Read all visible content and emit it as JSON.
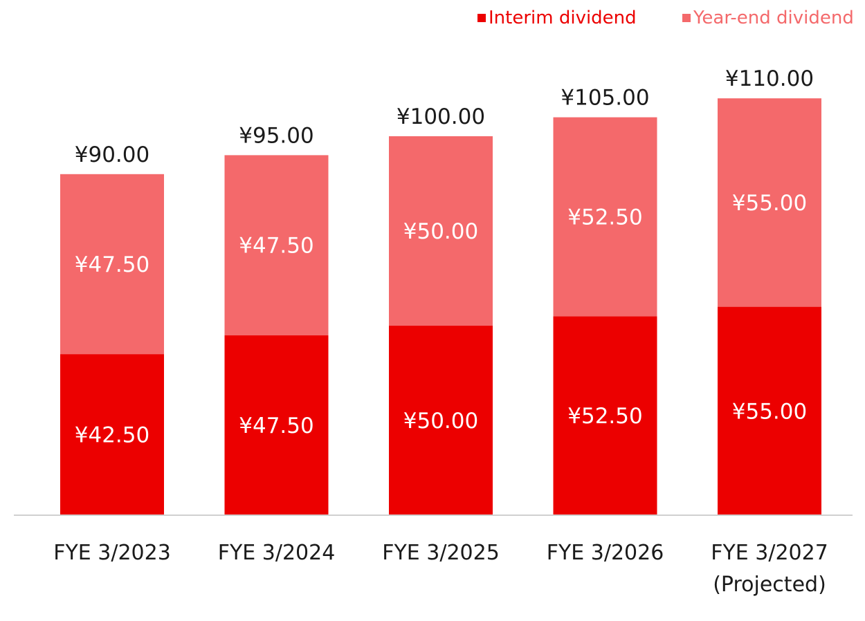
{
  "legend": {
    "interim_label": "Interim dividend",
    "yearend_label": "Year-end dividend"
  },
  "colors": {
    "interim": "#ec0000",
    "yearend": "#f4696b",
    "axis": "#d0d0d0",
    "text": "#1a1a1a",
    "inside_label": "#ffffff"
  },
  "chart_data": {
    "type": "bar",
    "stacked": true,
    "categories": [
      [
        "FYE 3/2023"
      ],
      [
        "FYE 3/2024"
      ],
      [
        "FYE 3/2025"
      ],
      [
        "FYE 3/2026"
      ],
      [
        "FYE 3/2027",
        "(Projected)"
      ]
    ],
    "series": [
      {
        "name": "Interim dividend",
        "values": [
          42.5,
          47.5,
          50.0,
          52.5,
          55.0
        ],
        "labels": [
          "¥42.50",
          "¥47.50",
          "¥50.00",
          "¥52.50",
          "¥55.00"
        ]
      },
      {
        "name": "Year-end dividend",
        "values": [
          47.5,
          47.5,
          50.0,
          52.5,
          55.0
        ],
        "labels": [
          "¥47.50",
          "¥47.50",
          "¥50.00",
          "¥52.50",
          "¥55.00"
        ]
      }
    ],
    "totals": [
      90.0,
      95.0,
      100.0,
      105.0,
      110.0
    ],
    "total_labels": [
      "¥90.00",
      "¥95.00",
      "¥100.00",
      "¥105.00",
      "¥110.00"
    ],
    "ylim": [
      0,
      110
    ],
    "grid": false,
    "legend_position": "top-right"
  }
}
